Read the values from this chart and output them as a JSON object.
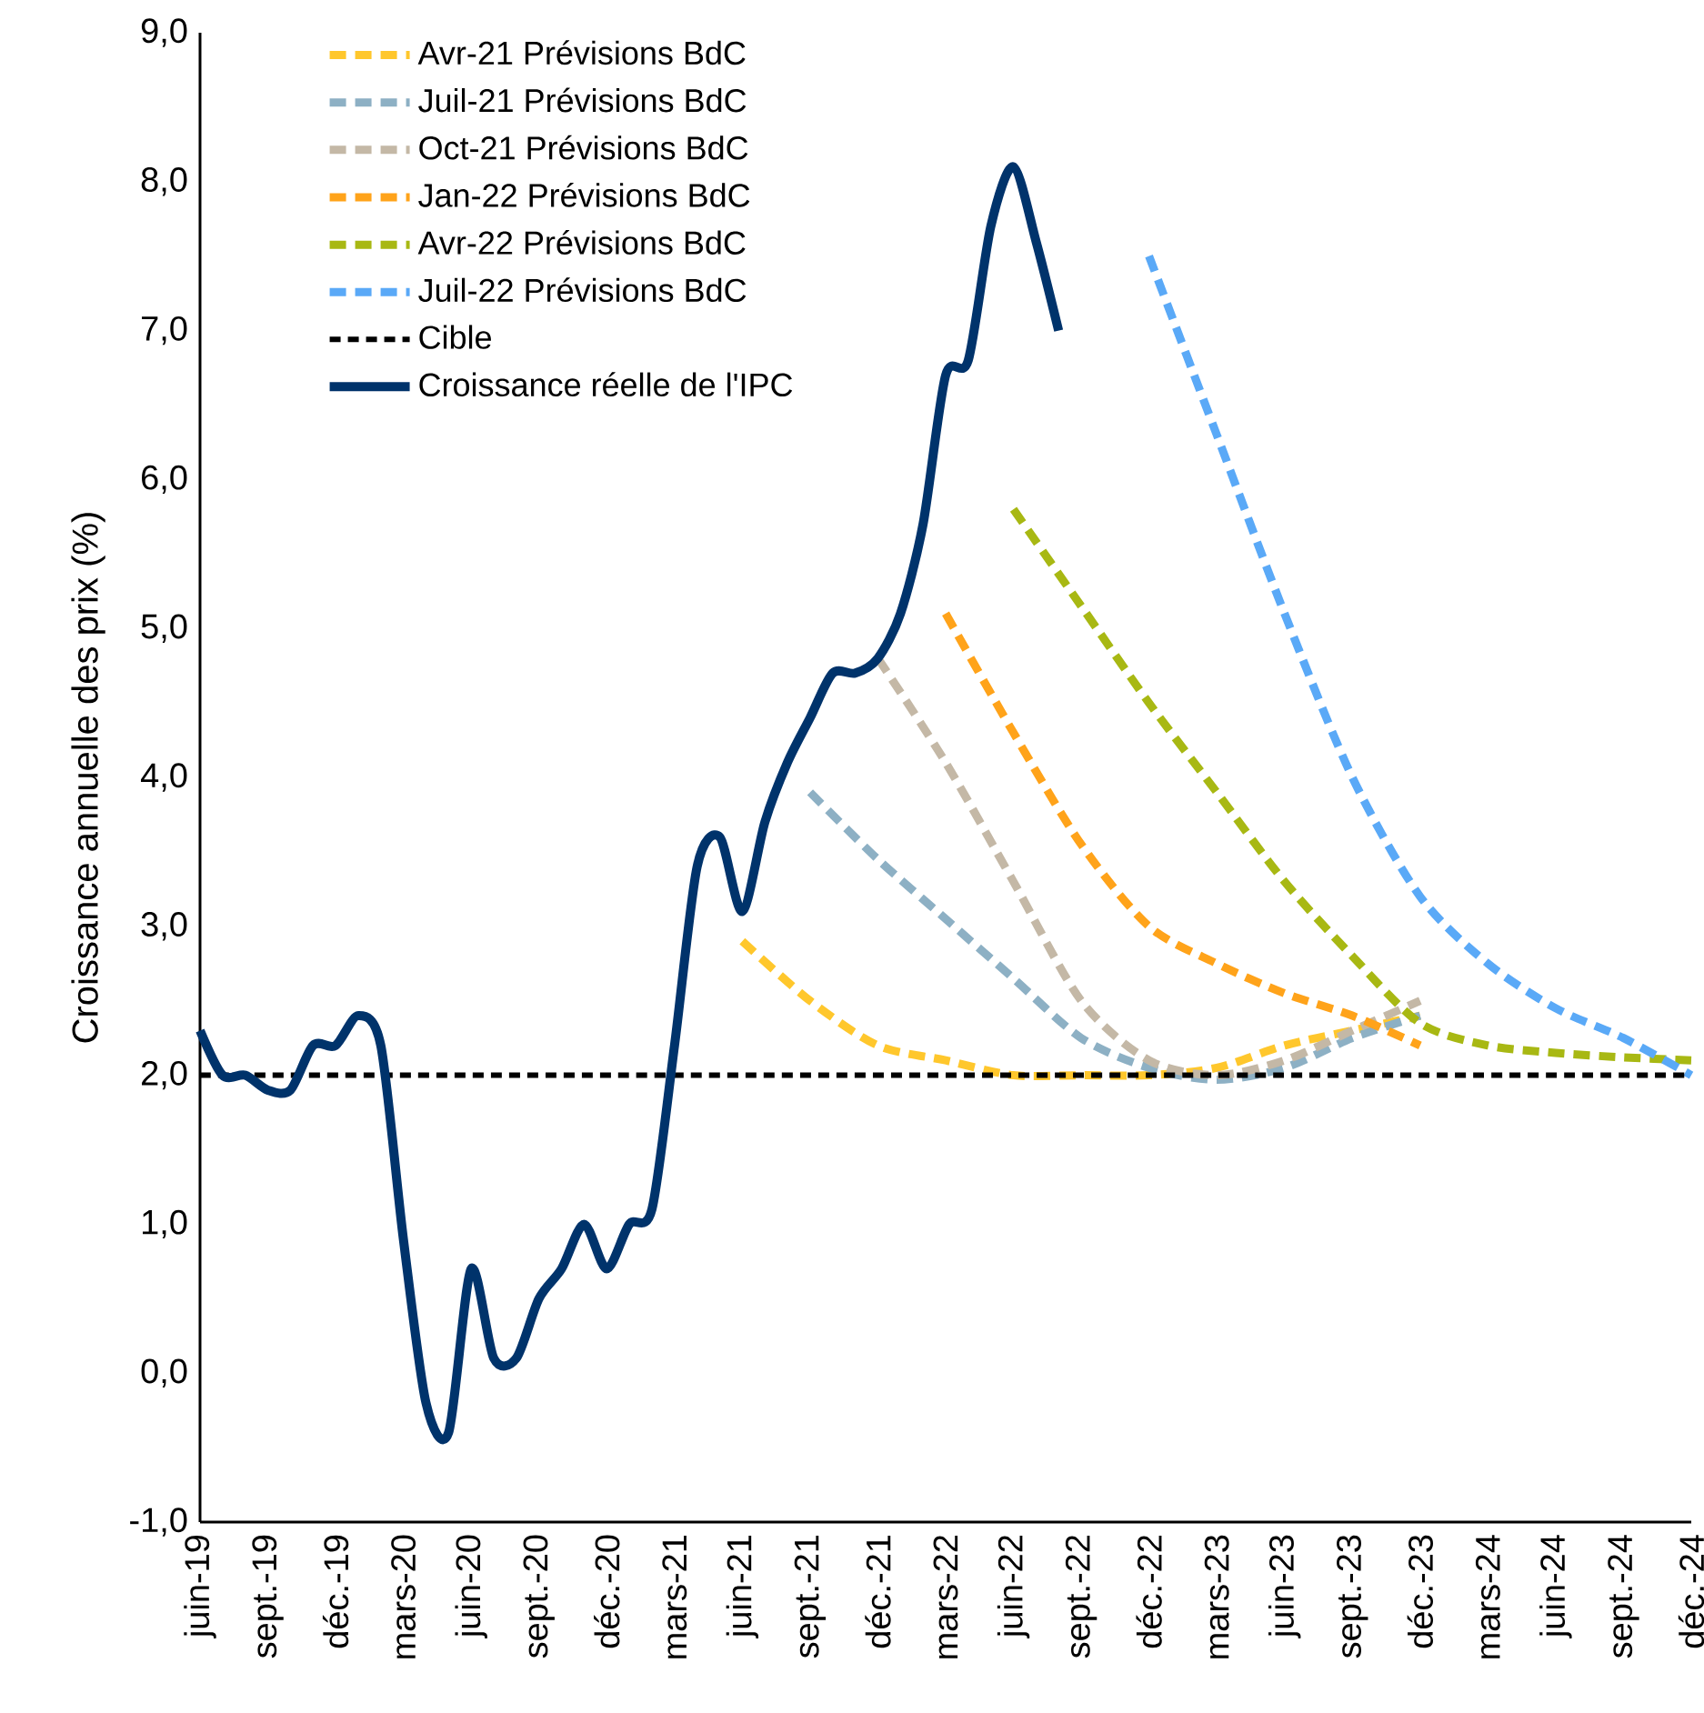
{
  "chart_data": {
    "type": "line",
    "ylabel": "Croissance annuelle des prix (%)",
    "xlim": [
      "2019-06",
      "2024-12"
    ],
    "xticks": [
      {
        "value": "2019-06",
        "label": "juin-19"
      },
      {
        "value": "2019-09",
        "label": "sept.-19"
      },
      {
        "value": "2019-12",
        "label": "déc.-19"
      },
      {
        "value": "2020-03",
        "label": "mars-20"
      },
      {
        "value": "2020-06",
        "label": "juin-20"
      },
      {
        "value": "2020-09",
        "label": "sept.-20"
      },
      {
        "value": "2020-12",
        "label": "déc.-20"
      },
      {
        "value": "2021-03",
        "label": "mars-21"
      },
      {
        "value": "2021-06",
        "label": "juin-21"
      },
      {
        "value": "2021-09",
        "label": "sept.-21"
      },
      {
        "value": "2021-12",
        "label": "déc.-21"
      },
      {
        "value": "2022-03",
        "label": "mars-22"
      },
      {
        "value": "2022-06",
        "label": "juin-22"
      },
      {
        "value": "2022-09",
        "label": "sept.-22"
      },
      {
        "value": "2022-12",
        "label": "déc.-22"
      },
      {
        "value": "2023-03",
        "label": "mars-23"
      },
      {
        "value": "2023-06",
        "label": "juin-23"
      },
      {
        "value": "2023-09",
        "label": "sept.-23"
      },
      {
        "value": "2023-12",
        "label": "déc.-23"
      },
      {
        "value": "2024-03",
        "label": "mars-24"
      },
      {
        "value": "2024-06",
        "label": "juin-24"
      },
      {
        "value": "2024-09",
        "label": "sept.-24"
      },
      {
        "value": "2024-12",
        "label": "déc.-24"
      }
    ],
    "ylim": [
      -1,
      9
    ],
    "yticks": [
      {
        "value": -1,
        "label": "-1,0"
      },
      {
        "value": 0,
        "label": "0,0"
      },
      {
        "value": 1,
        "label": "1,0"
      },
      {
        "value": 2,
        "label": "2,0"
      },
      {
        "value": 3,
        "label": "3,0"
      },
      {
        "value": 4,
        "label": "4,0"
      },
      {
        "value": 5,
        "label": "5,0"
      },
      {
        "value": 6,
        "label": "6,0"
      },
      {
        "value": 7,
        "label": "7,0"
      },
      {
        "value": 8,
        "label": "8,0"
      },
      {
        "value": 9,
        "label": "9,0"
      }
    ],
    "legend": "top left",
    "marker": "none",
    "series": [
      {
        "name": "Avr-21 Prévisions BdC",
        "color": "#ffc72c",
        "line_style": "dashed",
        "x": [
          "2021-06",
          "2021-09",
          "2021-12",
          "2022-03",
          "2022-06",
          "2022-09",
          "2022-12",
          "2023-03",
          "2023-06",
          "2023-09",
          "2023-12"
        ],
        "values": [
          2.9,
          2.5,
          2.2,
          2.1,
          2.0,
          2.0,
          2.0,
          2.05,
          2.2,
          2.3,
          2.4
        ]
      },
      {
        "name": "Juil-21 Prévisions BdC",
        "color": "#8db0c4",
        "line_style": "dashed",
        "x": [
          "2021-09",
          "2021-12",
          "2022-03",
          "2022-06",
          "2022-09",
          "2022-12",
          "2023-03",
          "2023-06",
          "2023-09",
          "2023-12"
        ],
        "values": [
          3.9,
          3.45,
          3.05,
          2.65,
          2.25,
          2.05,
          1.97,
          2.05,
          2.25,
          2.4
        ]
      },
      {
        "name": "Oct-21 Prévisions BdC",
        "color": "#c4b8a6",
        "line_style": "dashed",
        "x": [
          "2021-12",
          "2022-03",
          "2022-06",
          "2022-09",
          "2022-12",
          "2023-03",
          "2023-06",
          "2023-09",
          "2023-12"
        ],
        "values": [
          4.8,
          4.1,
          3.3,
          2.5,
          2.1,
          2.0,
          2.1,
          2.3,
          2.5
        ]
      },
      {
        "name": "Jan-22 Prévisions BdC",
        "color": "#ffa31a",
        "line_style": "dashed",
        "x": [
          "2022-03",
          "2022-06",
          "2022-09",
          "2022-12",
          "2023-03",
          "2023-06",
          "2023-09",
          "2023-12"
        ],
        "values": [
          5.1,
          4.3,
          3.55,
          3.0,
          2.75,
          2.55,
          2.4,
          2.2
        ]
      },
      {
        "name": "Avr-22 Prévisions BdC",
        "color": "#a8b813",
        "line_style": "dashed",
        "x": [
          "2022-06",
          "2022-09",
          "2022-12",
          "2023-03",
          "2023-06",
          "2023-09",
          "2023-12",
          "2024-03",
          "2024-06",
          "2024-09",
          "2024-12"
        ],
        "values": [
          5.8,
          5.15,
          4.5,
          3.9,
          3.3,
          2.8,
          2.35,
          2.2,
          2.15,
          2.12,
          2.1
        ]
      },
      {
        "name": "Juil-22 Prévisions BdC",
        "color": "#5aa9f7",
        "line_style": "dashed",
        "x": [
          "2022-12",
          "2023-03",
          "2023-06",
          "2023-09",
          "2023-12",
          "2024-03",
          "2024-06",
          "2024-09",
          "2024-12"
        ],
        "values": [
          7.5,
          6.3,
          5.1,
          4.0,
          3.2,
          2.75,
          2.45,
          2.25,
          2.0
        ]
      },
      {
        "name": "Cible",
        "color": "#000000",
        "line_style": "dotted",
        "x": [
          "2019-06",
          "2024-12"
        ],
        "values": [
          2.0,
          2.0
        ]
      },
      {
        "name": "Croissance réelle de l'IPC",
        "color": "#00336b",
        "line_style": "solid",
        "x": [
          "2019-06",
          "2019-07",
          "2019-08",
          "2019-09",
          "2019-10",
          "2019-11",
          "2019-12",
          "2020-01",
          "2020-02",
          "2020-03",
          "2020-04",
          "2020-05",
          "2020-06",
          "2020-07",
          "2020-08",
          "2020-09",
          "2020-10",
          "2020-11",
          "2020-12",
          "2021-01",
          "2021-02",
          "2021-03",
          "2021-04",
          "2021-05",
          "2021-06",
          "2021-07",
          "2021-08",
          "2021-09",
          "2021-10",
          "2021-11",
          "2021-12",
          "2022-01",
          "2022-02",
          "2022-03",
          "2022-04",
          "2022-05",
          "2022-06",
          "2022-07",
          "2022-08"
        ],
        "values": [
          2.3,
          2.0,
          2.0,
          1.9,
          1.9,
          2.2,
          2.2,
          2.4,
          2.2,
          0.9,
          -0.2,
          -0.4,
          0.7,
          0.1,
          0.1,
          0.5,
          0.7,
          1.0,
          0.7,
          1.0,
          1.1,
          2.2,
          3.4,
          3.6,
          3.1,
          3.7,
          4.1,
          4.4,
          4.7,
          4.7,
          4.8,
          5.1,
          5.7,
          6.7,
          6.8,
          7.7,
          8.1,
          7.6,
          7.0
        ]
      }
    ]
  }
}
